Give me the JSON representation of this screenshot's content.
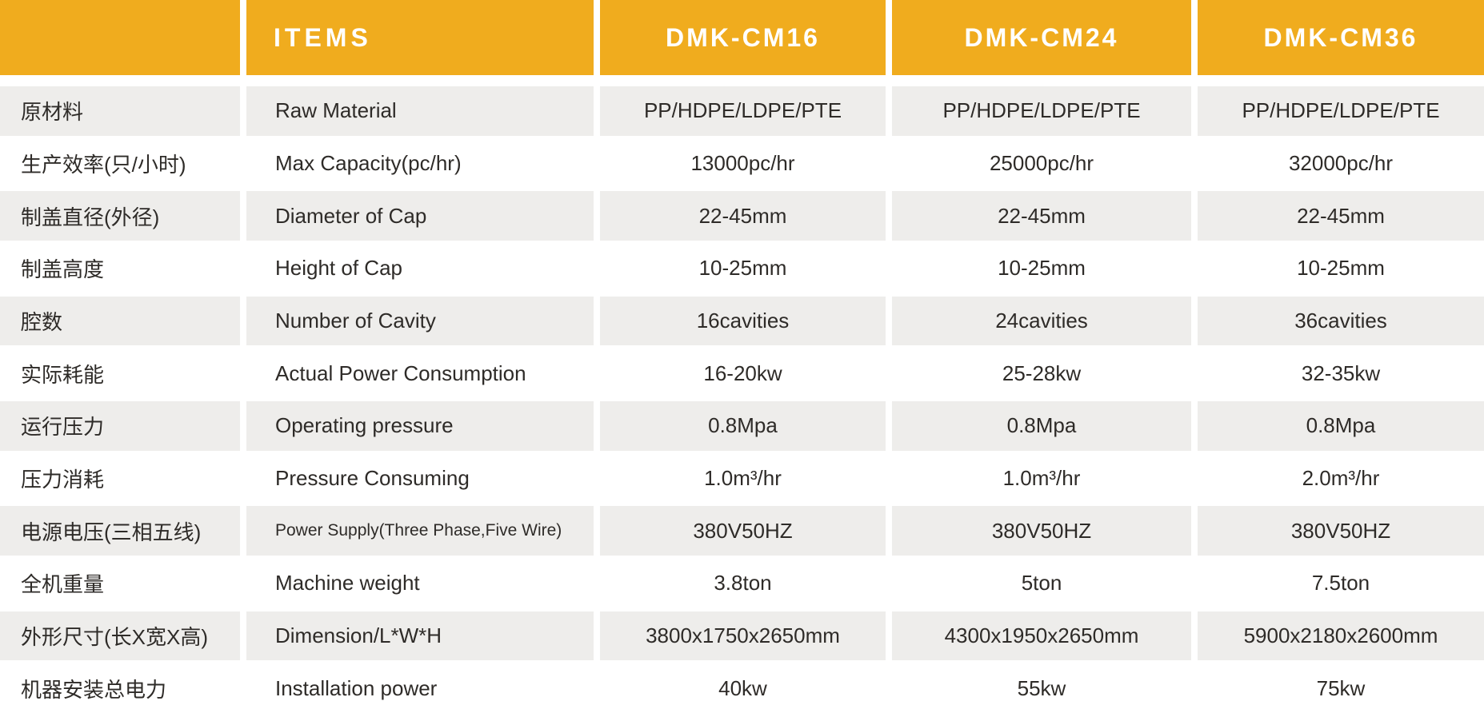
{
  "table": {
    "header": {
      "corner": "",
      "items_label": "ITEMS",
      "models": [
        "DMK-CM16",
        "DMK-CM24",
        "DMK-CM36"
      ]
    },
    "rows": [
      {
        "cn": "原材料",
        "en": "Raw Material",
        "values": [
          "PP/HDPE/LDPE/PTE",
          "PP/HDPE/LDPE/PTE",
          "PP/HDPE/LDPE/PTE"
        ]
      },
      {
        "cn": "生产效率(只/小时)",
        "en": "Max Capacity(pc/hr)",
        "values": [
          "13000pc/hr",
          "25000pc/hr",
          "32000pc/hr"
        ]
      },
      {
        "cn": "制盖直径(外径)",
        "en": "Diameter of Cap",
        "values": [
          "22-45mm",
          "22-45mm",
          "22-45mm"
        ]
      },
      {
        "cn": "制盖高度",
        "en": "Height of Cap",
        "values": [
          "10-25mm",
          "10-25mm",
          "10-25mm"
        ]
      },
      {
        "cn": "腔数",
        "en": "Number of Cavity",
        "values": [
          "16cavities",
          "24cavities",
          "36cavities"
        ]
      },
      {
        "cn": "实际耗能",
        "en": "Actual Power Consumption",
        "values": [
          "16-20kw",
          "25-28kw",
          "32-35kw"
        ]
      },
      {
        "cn": "运行压力",
        "en": "Operating pressure",
        "values": [
          "0.8Mpa",
          "0.8Mpa",
          "0.8Mpa"
        ]
      },
      {
        "cn": "压力消耗",
        "en": "Pressure Consuming",
        "values": [
          "1.0m³/hr",
          "1.0m³/hr",
          "2.0m³/hr"
        ]
      },
      {
        "cn": "电源电压(三相五线)",
        "en": "Power Supply(Three Phase,Five Wire)",
        "values": [
          "380V50HZ",
          "380V50HZ",
          "380V50HZ"
        ]
      },
      {
        "cn": "全机重量",
        "en": "Machine weight",
        "values": [
          "3.8ton",
          "5ton",
          "7.5ton"
        ]
      },
      {
        "cn": "外形尺寸(长X宽X高)",
        "en": "Dimension/L*W*H",
        "values": [
          "3800x1750x2650mm",
          "4300x1950x2650mm",
          "5900x2180x2600mm"
        ]
      },
      {
        "cn": "机器安装总电力",
        "en": "Installation power",
        "values": [
          "40kw",
          "55kw",
          "75kw"
        ]
      }
    ]
  },
  "colors": {
    "header_bg": "#F0AC1E",
    "alt_row_bg": "#EEEDEB",
    "body_text": "#2E2B28",
    "header_text": "#FFFFFF"
  }
}
